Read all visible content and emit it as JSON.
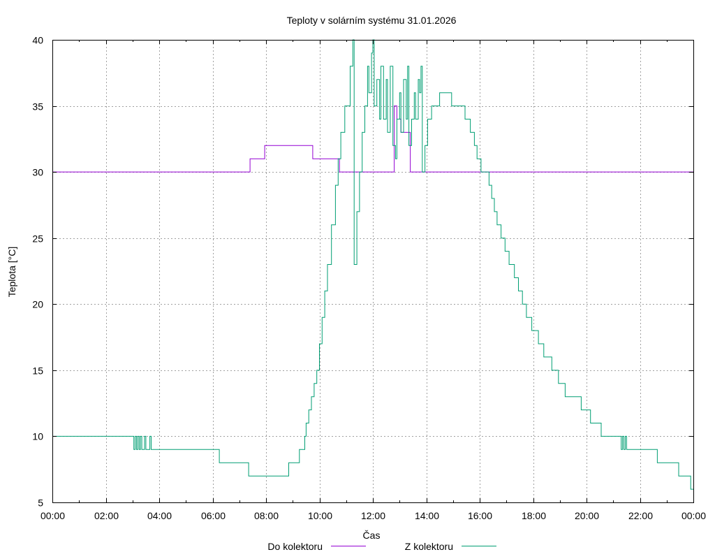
{
  "chart_data": {
    "type": "line",
    "title": "Teploty v solárním systému 31.01.2026",
    "xlabel": "Čas",
    "ylabel": "Teplota [°C]",
    "xlim": [
      0,
      24
    ],
    "ylim": [
      5,
      40
    ],
    "grid": true,
    "legend_position": "bottom",
    "x_ticks": [
      {
        "value": 0,
        "label": "00:00"
      },
      {
        "value": 2,
        "label": "02:00"
      },
      {
        "value": 4,
        "label": "04:00"
      },
      {
        "value": 6,
        "label": "06:00"
      },
      {
        "value": 8,
        "label": "08:00"
      },
      {
        "value": 10,
        "label": "10:00"
      },
      {
        "value": 12,
        "label": "12:00"
      },
      {
        "value": 14,
        "label": "14:00"
      },
      {
        "value": 16,
        "label": "16:00"
      },
      {
        "value": 18,
        "label": "18:00"
      },
      {
        "value": 20,
        "label": "20:00"
      },
      {
        "value": 22,
        "label": "22:00"
      },
      {
        "value": 24,
        "label": "00:00"
      }
    ],
    "y_ticks": [
      {
        "value": 5,
        "label": "5"
      },
      {
        "value": 10,
        "label": "10"
      },
      {
        "value": 15,
        "label": "15"
      },
      {
        "value": 20,
        "label": "20"
      },
      {
        "value": 25,
        "label": "25"
      },
      {
        "value": 30,
        "label": "30"
      },
      {
        "value": 35,
        "label": "35"
      },
      {
        "value": 40,
        "label": "40"
      }
    ],
    "series": [
      {
        "name": "Do kolektoru",
        "color": "#9400d3",
        "step": true,
        "points": [
          [
            0,
            30
          ],
          [
            7.35,
            30
          ],
          [
            7.4,
            31
          ],
          [
            7.9,
            31
          ],
          [
            7.95,
            32
          ],
          [
            9.7,
            32
          ],
          [
            9.75,
            31
          ],
          [
            10.7,
            31
          ],
          [
            10.75,
            30
          ],
          [
            12.75,
            30
          ],
          [
            12.8,
            35
          ],
          [
            12.9,
            34
          ],
          [
            13.0,
            34
          ],
          [
            13.05,
            33
          ],
          [
            13.35,
            33
          ],
          [
            13.4,
            30
          ],
          [
            24,
            30
          ]
        ]
      },
      {
        "name": "Z kolektoru",
        "color": "#009e73",
        "step": true,
        "points": [
          [
            0,
            10
          ],
          [
            3.0,
            10
          ],
          [
            3.05,
            9
          ],
          [
            3.1,
            10
          ],
          [
            3.15,
            9
          ],
          [
            3.2,
            10
          ],
          [
            3.25,
            9
          ],
          [
            3.3,
            10
          ],
          [
            3.35,
            9
          ],
          [
            3.45,
            10
          ],
          [
            3.5,
            9
          ],
          [
            3.65,
            10
          ],
          [
            3.7,
            9
          ],
          [
            6.2,
            9
          ],
          [
            6.25,
            8
          ],
          [
            7.3,
            8
          ],
          [
            7.35,
            7
          ],
          [
            8.8,
            7
          ],
          [
            8.85,
            8
          ],
          [
            9.2,
            8
          ],
          [
            9.25,
            9
          ],
          [
            9.4,
            9
          ],
          [
            9.45,
            10
          ],
          [
            9.5,
            11
          ],
          [
            9.6,
            12
          ],
          [
            9.7,
            13
          ],
          [
            9.8,
            14
          ],
          [
            9.9,
            15
          ],
          [
            10.0,
            17
          ],
          [
            10.1,
            19
          ],
          [
            10.2,
            21
          ],
          [
            10.3,
            23
          ],
          [
            10.45,
            26
          ],
          [
            10.6,
            29
          ],
          [
            10.7,
            31
          ],
          [
            10.8,
            33
          ],
          [
            10.95,
            35
          ],
          [
            11.15,
            38
          ],
          [
            11.25,
            40
          ],
          [
            11.3,
            23
          ],
          [
            11.4,
            27
          ],
          [
            11.5,
            30
          ],
          [
            11.6,
            33
          ],
          [
            11.7,
            35
          ],
          [
            11.8,
            38
          ],
          [
            11.85,
            36
          ],
          [
            11.95,
            39
          ],
          [
            12.0,
            40
          ],
          [
            12.05,
            35
          ],
          [
            12.15,
            37
          ],
          [
            12.25,
            34
          ],
          [
            12.3,
            38
          ],
          [
            12.4,
            34
          ],
          [
            12.5,
            37
          ],
          [
            12.55,
            33
          ],
          [
            12.65,
            38
          ],
          [
            12.75,
            32
          ],
          [
            12.85,
            31
          ],
          [
            12.9,
            34
          ],
          [
            13.0,
            36
          ],
          [
            13.05,
            33
          ],
          [
            13.15,
            37
          ],
          [
            13.25,
            34
          ],
          [
            13.3,
            38
          ],
          [
            13.35,
            32
          ],
          [
            13.45,
            34
          ],
          [
            13.55,
            36
          ],
          [
            13.6,
            34
          ],
          [
            13.7,
            37
          ],
          [
            13.75,
            36
          ],
          [
            13.8,
            38
          ],
          [
            13.85,
            30
          ],
          [
            13.95,
            32
          ],
          [
            14.05,
            34
          ],
          [
            14.2,
            35
          ],
          [
            14.5,
            36
          ],
          [
            14.95,
            35
          ],
          [
            15.45,
            34
          ],
          [
            15.65,
            33
          ],
          [
            15.8,
            32
          ],
          [
            15.9,
            31
          ],
          [
            16.05,
            30
          ],
          [
            16.2,
            30
          ],
          [
            16.35,
            29
          ],
          [
            16.45,
            28
          ],
          [
            16.55,
            27
          ],
          [
            16.65,
            26
          ],
          [
            16.8,
            25
          ],
          [
            16.95,
            24
          ],
          [
            17.1,
            23
          ],
          [
            17.3,
            22
          ],
          [
            17.45,
            21
          ],
          [
            17.6,
            20
          ],
          [
            17.75,
            19
          ],
          [
            17.95,
            18
          ],
          [
            18.2,
            17
          ],
          [
            18.4,
            16
          ],
          [
            18.7,
            15
          ],
          [
            18.95,
            14
          ],
          [
            19.2,
            13
          ],
          [
            19.8,
            12
          ],
          [
            20.15,
            11
          ],
          [
            20.55,
            10
          ],
          [
            21.3,
            9
          ],
          [
            21.35,
            10
          ],
          [
            21.4,
            9
          ],
          [
            21.45,
            10
          ],
          [
            21.5,
            9
          ],
          [
            22.65,
            8
          ],
          [
            23.45,
            7
          ],
          [
            23.9,
            6
          ],
          [
            24.0,
            6
          ]
        ]
      }
    ]
  }
}
